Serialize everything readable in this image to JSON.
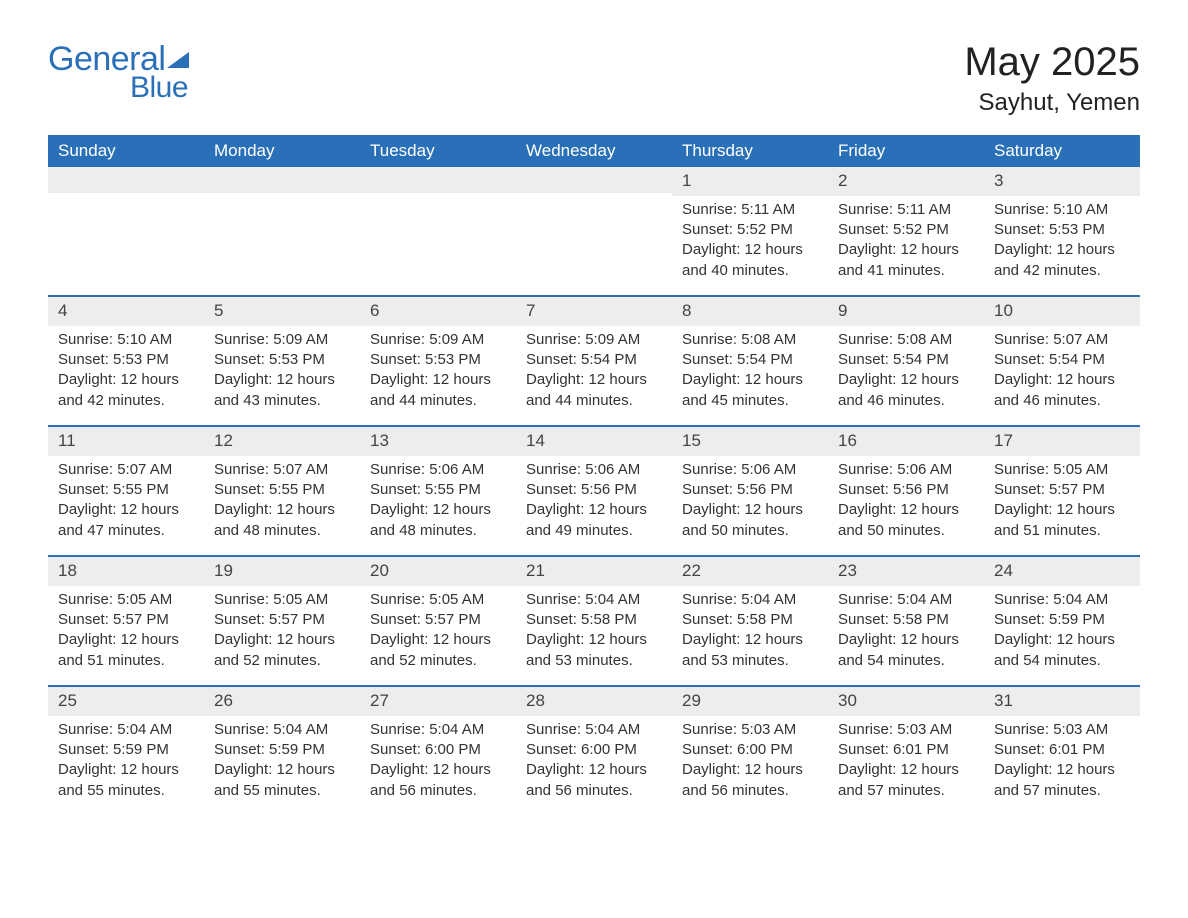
{
  "logo": {
    "general": "General",
    "blue": "Blue"
  },
  "title": {
    "month_year": "May 2025",
    "location": "Sayhut, Yemen"
  },
  "colors": {
    "brand": "#2a70b8",
    "header_bg": "#2a70b8",
    "header_text": "#ffffff",
    "daynum_bg": "#ededed",
    "text": "#333333",
    "page_bg": "#ffffff"
  },
  "labels": {
    "sunrise": "Sunrise:",
    "sunset": "Sunset:",
    "daylight": "Daylight:"
  },
  "day_names": [
    "Sunday",
    "Monday",
    "Tuesday",
    "Wednesday",
    "Thursday",
    "Friday",
    "Saturday"
  ],
  "weeks": [
    [
      {
        "day": "",
        "sunrise": "",
        "sunset": "",
        "daylight": ""
      },
      {
        "day": "",
        "sunrise": "",
        "sunset": "",
        "daylight": ""
      },
      {
        "day": "",
        "sunrise": "",
        "sunset": "",
        "daylight": ""
      },
      {
        "day": "",
        "sunrise": "",
        "sunset": "",
        "daylight": ""
      },
      {
        "day": "1",
        "sunrise": "5:11 AM",
        "sunset": "5:52 PM",
        "daylight": "12 hours and 40 minutes."
      },
      {
        "day": "2",
        "sunrise": "5:11 AM",
        "sunset": "5:52 PM",
        "daylight": "12 hours and 41 minutes."
      },
      {
        "day": "3",
        "sunrise": "5:10 AM",
        "sunset": "5:53 PM",
        "daylight": "12 hours and 42 minutes."
      }
    ],
    [
      {
        "day": "4",
        "sunrise": "5:10 AM",
        "sunset": "5:53 PM",
        "daylight": "12 hours and 42 minutes."
      },
      {
        "day": "5",
        "sunrise": "5:09 AM",
        "sunset": "5:53 PM",
        "daylight": "12 hours and 43 minutes."
      },
      {
        "day": "6",
        "sunrise": "5:09 AM",
        "sunset": "5:53 PM",
        "daylight": "12 hours and 44 minutes."
      },
      {
        "day": "7",
        "sunrise": "5:09 AM",
        "sunset": "5:54 PM",
        "daylight": "12 hours and 44 minutes."
      },
      {
        "day": "8",
        "sunrise": "5:08 AM",
        "sunset": "5:54 PM",
        "daylight": "12 hours and 45 minutes."
      },
      {
        "day": "9",
        "sunrise": "5:08 AM",
        "sunset": "5:54 PM",
        "daylight": "12 hours and 46 minutes."
      },
      {
        "day": "10",
        "sunrise": "5:07 AM",
        "sunset": "5:54 PM",
        "daylight": "12 hours and 46 minutes."
      }
    ],
    [
      {
        "day": "11",
        "sunrise": "5:07 AM",
        "sunset": "5:55 PM",
        "daylight": "12 hours and 47 minutes."
      },
      {
        "day": "12",
        "sunrise": "5:07 AM",
        "sunset": "5:55 PM",
        "daylight": "12 hours and 48 minutes."
      },
      {
        "day": "13",
        "sunrise": "5:06 AM",
        "sunset": "5:55 PM",
        "daylight": "12 hours and 48 minutes."
      },
      {
        "day": "14",
        "sunrise": "5:06 AM",
        "sunset": "5:56 PM",
        "daylight": "12 hours and 49 minutes."
      },
      {
        "day": "15",
        "sunrise": "5:06 AM",
        "sunset": "5:56 PM",
        "daylight": "12 hours and 50 minutes."
      },
      {
        "day": "16",
        "sunrise": "5:06 AM",
        "sunset": "5:56 PM",
        "daylight": "12 hours and 50 minutes."
      },
      {
        "day": "17",
        "sunrise": "5:05 AM",
        "sunset": "5:57 PM",
        "daylight": "12 hours and 51 minutes."
      }
    ],
    [
      {
        "day": "18",
        "sunrise": "5:05 AM",
        "sunset": "5:57 PM",
        "daylight": "12 hours and 51 minutes."
      },
      {
        "day": "19",
        "sunrise": "5:05 AM",
        "sunset": "5:57 PM",
        "daylight": "12 hours and 52 minutes."
      },
      {
        "day": "20",
        "sunrise": "5:05 AM",
        "sunset": "5:57 PM",
        "daylight": "12 hours and 52 minutes."
      },
      {
        "day": "21",
        "sunrise": "5:04 AM",
        "sunset": "5:58 PM",
        "daylight": "12 hours and 53 minutes."
      },
      {
        "day": "22",
        "sunrise": "5:04 AM",
        "sunset": "5:58 PM",
        "daylight": "12 hours and 53 minutes."
      },
      {
        "day": "23",
        "sunrise": "5:04 AM",
        "sunset": "5:58 PM",
        "daylight": "12 hours and 54 minutes."
      },
      {
        "day": "24",
        "sunrise": "5:04 AM",
        "sunset": "5:59 PM",
        "daylight": "12 hours and 54 minutes."
      }
    ],
    [
      {
        "day": "25",
        "sunrise": "5:04 AM",
        "sunset": "5:59 PM",
        "daylight": "12 hours and 55 minutes."
      },
      {
        "day": "26",
        "sunrise": "5:04 AM",
        "sunset": "5:59 PM",
        "daylight": "12 hours and 55 minutes."
      },
      {
        "day": "27",
        "sunrise": "5:04 AM",
        "sunset": "6:00 PM",
        "daylight": "12 hours and 56 minutes."
      },
      {
        "day": "28",
        "sunrise": "5:04 AM",
        "sunset": "6:00 PM",
        "daylight": "12 hours and 56 minutes."
      },
      {
        "day": "29",
        "sunrise": "5:03 AM",
        "sunset": "6:00 PM",
        "daylight": "12 hours and 56 minutes."
      },
      {
        "day": "30",
        "sunrise": "5:03 AM",
        "sunset": "6:01 PM",
        "daylight": "12 hours and 57 minutes."
      },
      {
        "day": "31",
        "sunrise": "5:03 AM",
        "sunset": "6:01 PM",
        "daylight": "12 hours and 57 minutes."
      }
    ]
  ]
}
